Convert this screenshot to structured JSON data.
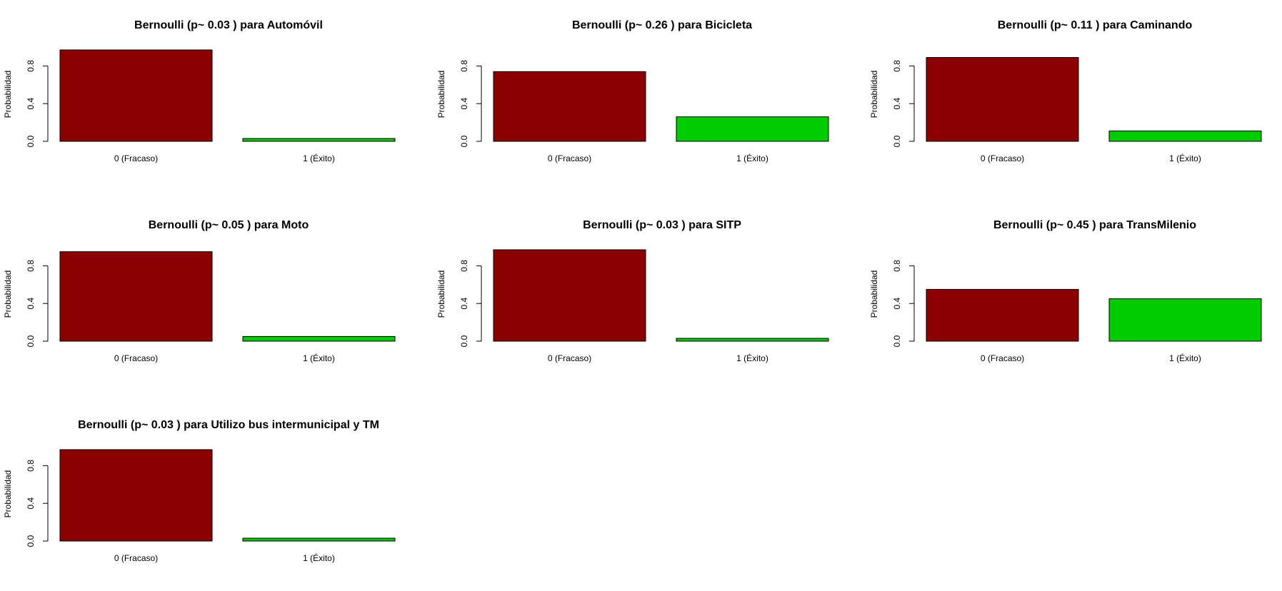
{
  "colors": {
    "fracaso": "#8B0000",
    "exito": "#00CD00",
    "axis": "#000000"
  },
  "chart_data": [
    {
      "type": "bar",
      "title": "Bernoulli (p~ 0.03 ) para Automóvil",
      "categories": [
        "0 (Fracaso)",
        "1 (Éxito)"
      ],
      "values": [
        0.97,
        0.03
      ],
      "xlabel": "",
      "ylabel": "Probabilidad",
      "ylim": [
        0,
        1
      ],
      "yticks": [
        "0.0",
        "0.4",
        "0.8"
      ],
      "grid": false
    },
    {
      "type": "bar",
      "title": "Bernoulli (p~ 0.26 ) para Bicicleta",
      "categories": [
        "0 (Fracaso)",
        "1 (Éxito)"
      ],
      "values": [
        0.74,
        0.26
      ],
      "xlabel": "",
      "ylabel": "Probabilidad",
      "ylim": [
        0,
        1
      ],
      "yticks": [
        "0.0",
        "0.4",
        "0.8"
      ],
      "grid": false
    },
    {
      "type": "bar",
      "title": "Bernoulli (p~ 0.11 ) para Caminando",
      "categories": [
        "0 (Fracaso)",
        "1 (Éxito)"
      ],
      "values": [
        0.89,
        0.11
      ],
      "xlabel": "",
      "ylabel": "Probabilidad",
      "ylim": [
        0,
        1
      ],
      "yticks": [
        "0.0",
        "0.4",
        "0.8"
      ],
      "grid": false
    },
    {
      "type": "bar",
      "title": "Bernoulli (p~ 0.05 ) para Moto",
      "categories": [
        "0 (Fracaso)",
        "1 (Éxito)"
      ],
      "values": [
        0.95,
        0.05
      ],
      "xlabel": "",
      "ylabel": "Probabilidad",
      "ylim": [
        0,
        1
      ],
      "yticks": [
        "0.0",
        "0.4",
        "0.8"
      ],
      "grid": false
    },
    {
      "type": "bar",
      "title": "Bernoulli (p~ 0.03 ) para SITP",
      "categories": [
        "0 (Fracaso)",
        "1 (Éxito)"
      ],
      "values": [
        0.97,
        0.03
      ],
      "xlabel": "",
      "ylabel": "Probabilidad",
      "ylim": [
        0,
        1
      ],
      "yticks": [
        "0.0",
        "0.4",
        "0.8"
      ],
      "grid": false
    },
    {
      "type": "bar",
      "title": "Bernoulli (p~ 0.45 ) para TransMilenio",
      "categories": [
        "0 (Fracaso)",
        "1 (Éxito)"
      ],
      "values": [
        0.55,
        0.45
      ],
      "xlabel": "",
      "ylabel": "Probabilidad",
      "ylim": [
        0,
        1
      ],
      "yticks": [
        "0.0",
        "0.4",
        "0.8"
      ],
      "grid": false
    },
    {
      "type": "bar",
      "title": "Bernoulli (p~ 0.03 ) para Utilizo bus intermunicipal y TM",
      "categories": [
        "0 (Fracaso)",
        "1 (Éxito)"
      ],
      "values": [
        0.97,
        0.03
      ],
      "xlabel": "",
      "ylabel": "Probabilidad",
      "ylim": [
        0,
        1
      ],
      "yticks": [
        "0.0",
        "0.4",
        "0.8"
      ],
      "grid": false
    }
  ]
}
